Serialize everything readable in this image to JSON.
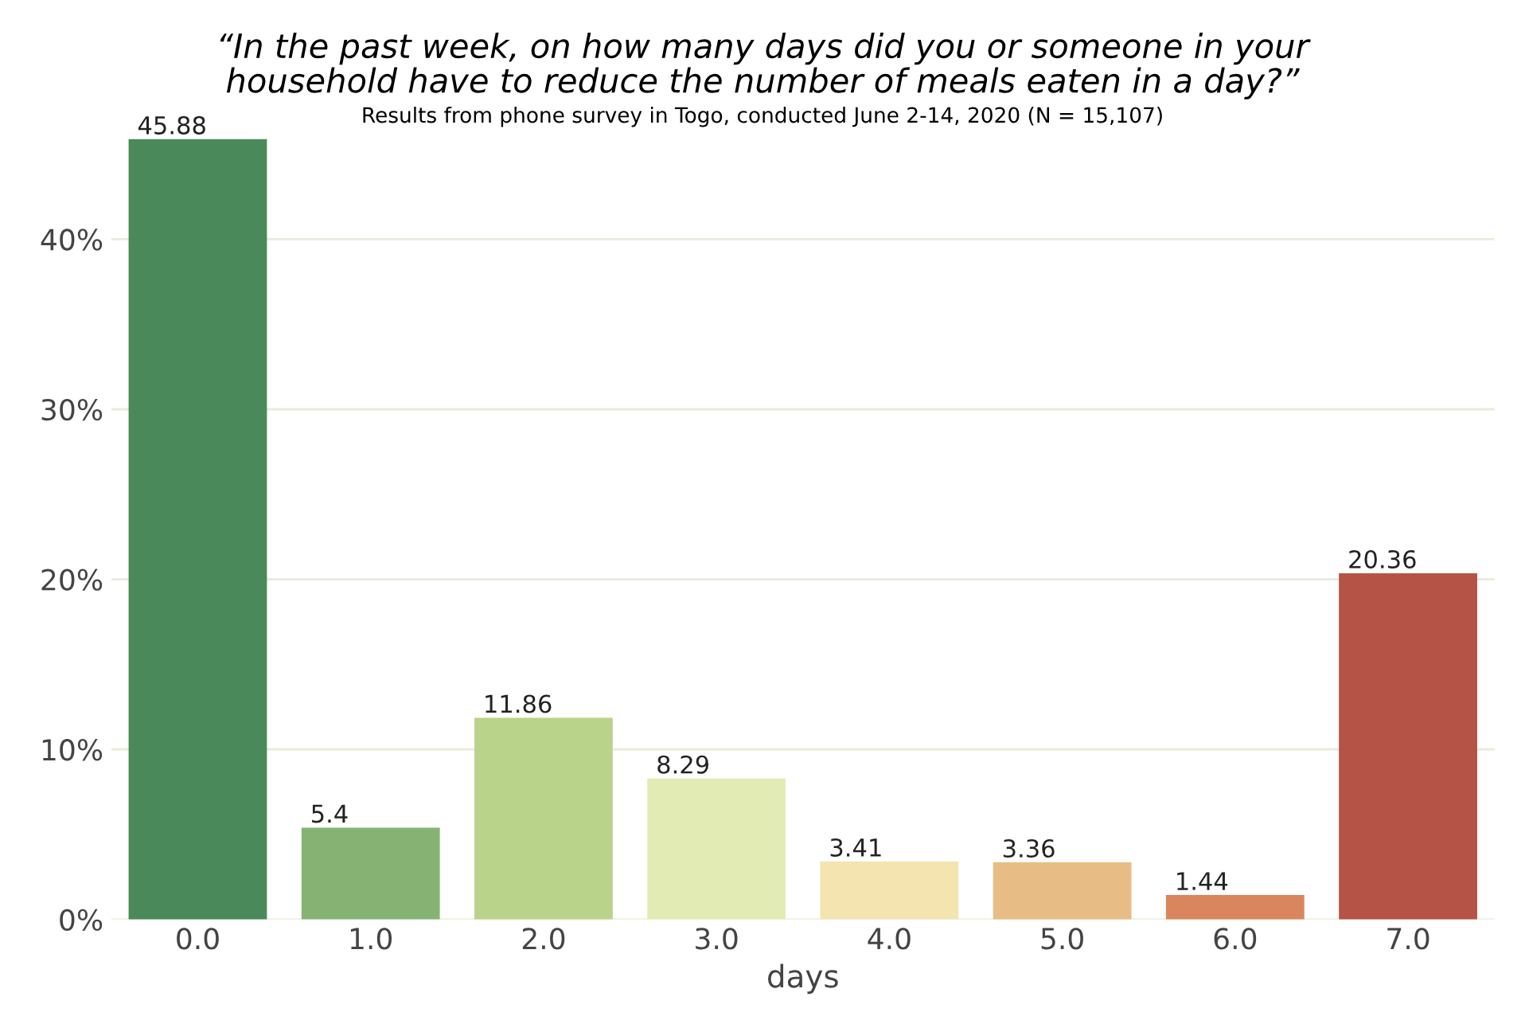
{
  "chart_data": {
    "type": "bar",
    "title": "“In the past week, on how many days did you or someone in your\nhousehold have to reduce the number of meals eaten in a day?”",
    "subtitle": "Results from phone survey in Togo, conducted June 2-14, 2020 (N = 15,107)",
    "xlabel": "days",
    "categories": [
      "0.0",
      "1.0",
      "2.0",
      "3.0",
      "4.0",
      "5.0",
      "6.0",
      "7.0"
    ],
    "values": [
      45.88,
      5.4,
      11.86,
      8.29,
      3.41,
      3.36,
      1.44,
      20.36
    ],
    "colors": [
      "#4a8a5a",
      "#86b374",
      "#bad38a",
      "#e3ebb4",
      "#f3e4b0",
      "#e7bd85",
      "#d9865f",
      "#b55347"
    ],
    "data_labels": true,
    "ylim": [
      0,
      46
    ],
    "yticks": [
      {
        "value": 0,
        "label": "0%"
      },
      {
        "value": 10,
        "label": "10%"
      },
      {
        "value": 20,
        "label": "20%"
      },
      {
        "value": 30,
        "label": "30%"
      },
      {
        "value": 40,
        "label": "40%"
      }
    ],
    "grid": "y"
  }
}
